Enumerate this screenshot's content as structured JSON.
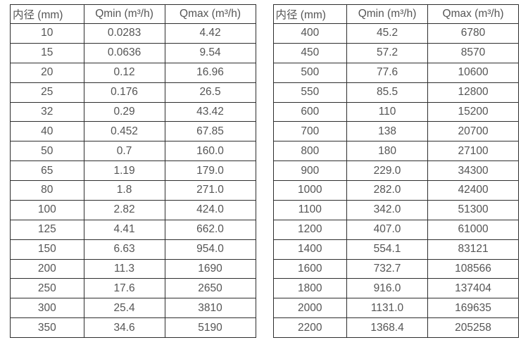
{
  "colors": {
    "border": "#2e2e2e",
    "text": "#555555",
    "background": "#ffffff"
  },
  "tables": [
    {
      "name": "flow-table-small-diameters",
      "headers": [
        "内径 (mm)",
        "Qmin (m³/h)",
        "Qmax (m³/h)"
      ],
      "rows": [
        [
          "10",
          "0.0283",
          "4.42"
        ],
        [
          "15",
          "0.0636",
          "9.54"
        ],
        [
          "20",
          "0.12",
          "16.96"
        ],
        [
          "25",
          "0.176",
          "26.5"
        ],
        [
          "32",
          "0.29",
          "43.42"
        ],
        [
          "40",
          "0.452",
          "67.85"
        ],
        [
          "50",
          "0.7",
          "160.0"
        ],
        [
          "65",
          "1.19",
          "179.0"
        ],
        [
          "80",
          "1.8",
          "271.0"
        ],
        [
          "100",
          "2.82",
          "424.0"
        ],
        [
          "125",
          "4.41",
          "662.0"
        ],
        [
          "150",
          "6.63",
          "954.0"
        ],
        [
          "200",
          "11.3",
          "1690"
        ],
        [
          "250",
          "17.6",
          "2650"
        ],
        [
          "300",
          "25.4",
          "3810"
        ],
        [
          "350",
          "34.6",
          "5190"
        ]
      ]
    },
    {
      "name": "flow-table-large-diameters",
      "headers": [
        "内径 (mm)",
        "Qmin (m³/h)",
        "Qmax (m³/h)"
      ],
      "rows": [
        [
          "400",
          "45.2",
          "6780"
        ],
        [
          "450",
          "57.2",
          "8570"
        ],
        [
          "500",
          "77.6",
          "10600"
        ],
        [
          "550",
          "85.5",
          "12800"
        ],
        [
          "600",
          "110",
          "15200"
        ],
        [
          "700",
          "138",
          "20700"
        ],
        [
          "800",
          "180",
          "27100"
        ],
        [
          "900",
          "229.0",
          "34300"
        ],
        [
          "1000",
          "282.0",
          "42400"
        ],
        [
          "1100",
          "342.0",
          "51300"
        ],
        [
          "1200",
          "407.0",
          "61000"
        ],
        [
          "1400",
          "554.1",
          "83121"
        ],
        [
          "1600",
          "732.7",
          "108566"
        ],
        [
          "1800",
          "916.0",
          "137404"
        ],
        [
          "2000",
          "1131.0",
          "169635"
        ],
        [
          "2200",
          "1368.4",
          "205258"
        ]
      ]
    }
  ]
}
